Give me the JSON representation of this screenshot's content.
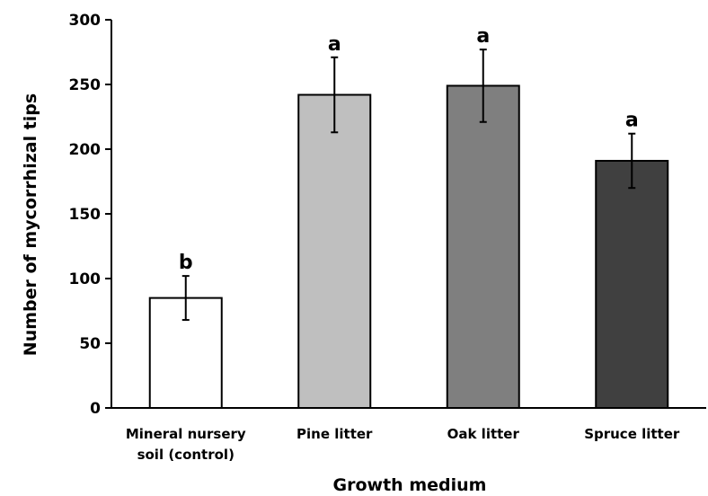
{
  "chart_data": {
    "type": "bar",
    "categories": [
      "Mineral nursery soil (control)",
      "Pine litter",
      "Oak litter",
      "Spruce litter"
    ],
    "category_lines": [
      [
        "Mineral nursery",
        "soil (control)"
      ],
      [
        "Pine litter"
      ],
      [
        "Oak litter"
      ],
      [
        "Spruce litter"
      ]
    ],
    "values": [
      85,
      242,
      249,
      191
    ],
    "errors": [
      17,
      29,
      28,
      21
    ],
    "significance_letters": [
      "b",
      "a",
      "a",
      "a"
    ],
    "bar_colors": [
      "#ffffff",
      "#bfbfbf",
      "#7f7f7f",
      "#404040"
    ],
    "xlabel": "Growth medium",
    "ylabel": "Number of mycorrhizal tips",
    "ylim": [
      0,
      300
    ],
    "yticks": [
      0,
      50,
      100,
      150,
      200,
      250,
      300
    ],
    "grid": false,
    "legend": "none"
  }
}
